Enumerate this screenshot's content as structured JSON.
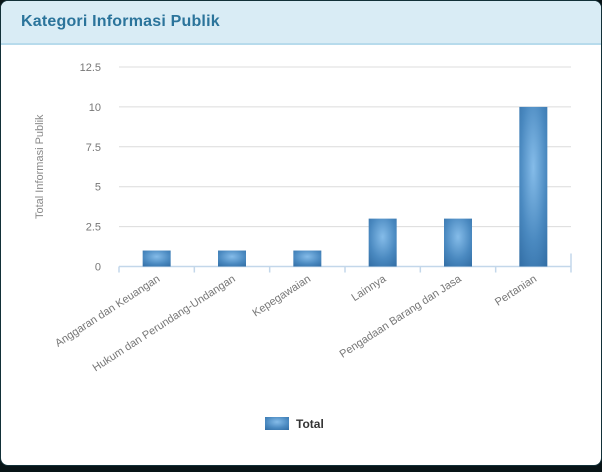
{
  "header": {
    "title": "Kategori Informasi Publik"
  },
  "chart_data": {
    "type": "bar",
    "title": "Kategori Informasi Publik",
    "categories": [
      "Anggaran dan Keuangan",
      "Hukum dan Perundang-Undangan",
      "Kepegawaian",
      "Lainnya",
      "Pengadaan Barang dan Jasa",
      "Pertanian"
    ],
    "series": [
      {
        "name": "Total",
        "values": [
          1,
          1,
          1,
          3,
          3,
          10
        ]
      }
    ],
    "xlabel": "",
    "ylabel": "Total Informasi Publik",
    "ylim": [
      0,
      12.5
    ],
    "yticks": [
      0,
      2.5,
      5,
      7.5,
      10,
      12.5
    ],
    "grid": true,
    "legend_position": "bottom"
  },
  "theme": {
    "page_bg": "#081417",
    "card_bg": "#ffffff",
    "card_border": "#123038",
    "header_bg": "#d9ecf5",
    "header_border": "#b7dbec",
    "title_color": "#2b749b",
    "bar_gradient_light": "#85bce9",
    "bar_gradient_mid": "#4a89c0",
    "bar_gradient_dark": "#2d689f",
    "axis_line_color": "#c3d7ea",
    "gridline_color": "#dcdcdc",
    "tick_label_color": "#777777",
    "axis_title_color": "#888888",
    "legend_text_color": "#333333"
  }
}
